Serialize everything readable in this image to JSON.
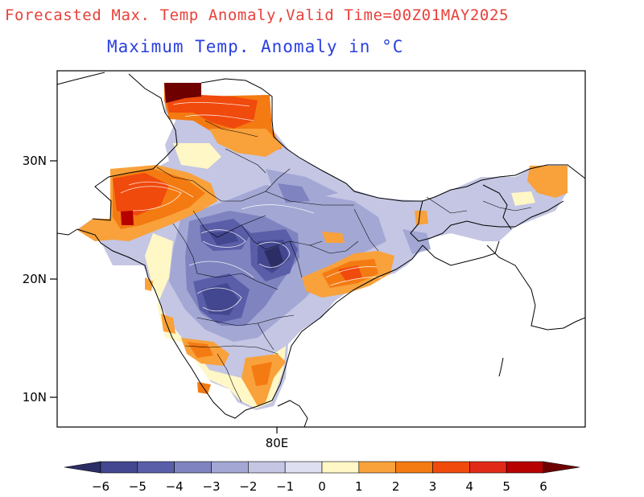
{
  "header": {
    "title": "Forecasted Max. Temp Anomaly,Valid Time=00Z01MAY2025",
    "subtitle": "Maximum Temp. Anomaly in °C"
  },
  "axes": {
    "lat_ticks": [
      "30N",
      "20N",
      "10N"
    ],
    "lon_ticks": [
      "80E"
    ]
  },
  "colorbar": {
    "labels": [
      "−6",
      "−5",
      "−4",
      "−3",
      "−2",
      "−1",
      "0",
      "1",
      "2",
      "3",
      "4",
      "5",
      "6"
    ],
    "colors": [
      "#2d2d66",
      "#43478f",
      "#5a5ea8",
      "#7f84c0",
      "#a3a7d4",
      "#c4c6e3",
      "#dedff1",
      "#fff7c6",
      "#f9a13a",
      "#f47a12",
      "#f04a0c",
      "#e02a17",
      "#b70000",
      "#6e0000"
    ]
  }
}
